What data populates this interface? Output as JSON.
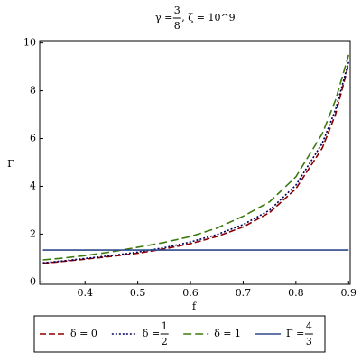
{
  "chart_data": {
    "type": "line",
    "title": {
      "text": "γ = ",
      "num": "3",
      "den": "8",
      "after": " , ζ = 10^9"
    },
    "x_label": "f",
    "y_label": "Γ",
    "x": [
      0.32,
      0.35,
      0.4,
      0.45,
      0.5,
      0.55,
      0.6,
      0.65,
      0.7,
      0.75,
      0.8,
      0.85,
      0.875,
      0.9
    ],
    "series": [
      {
        "name": {
          "text": "δ = 0"
        },
        "color": "#8b0000",
        "dash": "7,3",
        "values": [
          0.78,
          0.84,
          0.95,
          1.07,
          1.2,
          1.38,
          1.6,
          1.9,
          2.3,
          2.9,
          3.9,
          5.6,
          7.0,
          9.1
        ]
      },
      {
        "name": {
          "text": "δ = ",
          "num": "1",
          "den": "2"
        },
        "color": "#000060",
        "dash": "2,2",
        "values": [
          0.8,
          0.86,
          0.98,
          1.1,
          1.25,
          1.43,
          1.67,
          1.98,
          2.4,
          3.0,
          4.05,
          5.8,
          7.2,
          9.2
        ]
      },
      {
        "name": {
          "text": "δ = 1"
        },
        "color": "#3c7a10",
        "dash": "9,4",
        "values": [
          0.92,
          0.98,
          1.1,
          1.26,
          1.45,
          1.65,
          1.9,
          2.25,
          2.75,
          3.35,
          4.4,
          6.2,
          7.6,
          9.5
        ]
      },
      {
        "name": {
          "text": "Γ = ",
          "num": "4",
          "den": "3"
        },
        "color": "#2e4a8c",
        "dash": "none",
        "values": [
          1.333,
          1.333,
          1.333,
          1.333,
          1.333,
          1.333,
          1.333,
          1.333,
          1.333,
          1.333,
          1.333,
          1.333,
          1.333,
          1.333
        ]
      }
    ],
    "xlim": [
      0.314,
      0.903
    ],
    "ylim": [
      -0.1,
      10.1
    ],
    "xticks": [
      0.4,
      0.5,
      0.6,
      0.7,
      0.8,
      0.9
    ],
    "yticks": [
      0,
      2,
      4,
      6,
      8,
      10
    ]
  }
}
